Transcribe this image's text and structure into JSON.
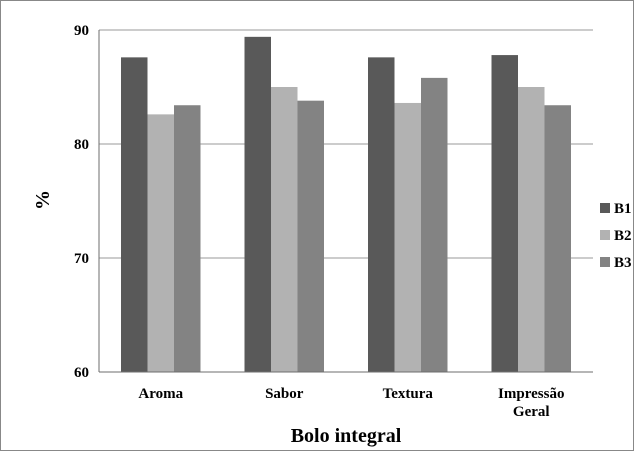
{
  "chart_data": {
    "type": "bar",
    "title": "",
    "xlabel": "Bolo integral",
    "ylabel": "%",
    "ylim": [
      60,
      90
    ],
    "yticks": [
      "60",
      "70",
      "80",
      "90"
    ],
    "grid": true,
    "legend_position": "right",
    "categories": [
      "Aroma",
      "Sabor",
      "Textura",
      "Impressão Geral"
    ],
    "category_lines": [
      [
        "Aroma"
      ],
      [
        "Sabor"
      ],
      [
        "Textura"
      ],
      [
        "Impressão",
        "Geral"
      ]
    ],
    "series": [
      {
        "name": "B1",
        "color": "#595959",
        "values": [
          87.6,
          89.4,
          87.6,
          87.8
        ]
      },
      {
        "name": "B2",
        "color": "#b2b2b2",
        "values": [
          82.6,
          85.0,
          83.6,
          85.0
        ]
      },
      {
        "name": "B3",
        "color": "#838383",
        "values": [
          83.4,
          83.8,
          85.8,
          83.4
        ]
      }
    ]
  }
}
